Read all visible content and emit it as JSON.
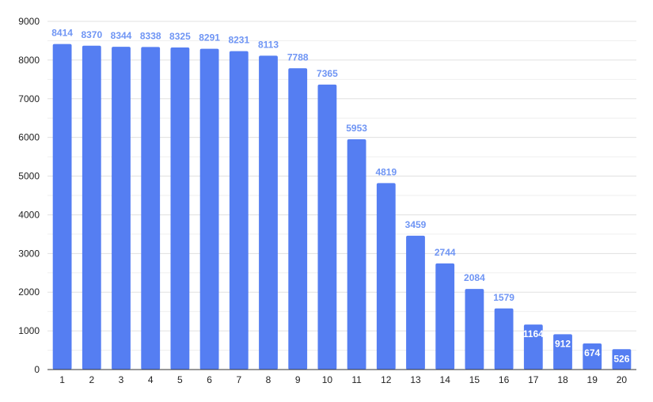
{
  "chart_data": {
    "type": "bar",
    "title": "",
    "xlabel": "",
    "ylabel": "",
    "categories": [
      "1",
      "2",
      "3",
      "4",
      "5",
      "6",
      "7",
      "8",
      "9",
      "10",
      "11",
      "12",
      "13",
      "14",
      "15",
      "16",
      "17",
      "18",
      "19",
      "20"
    ],
    "values": [
      8414,
      8370,
      8344,
      8338,
      8325,
      8291,
      8231,
      8113,
      7788,
      7365,
      5953,
      4819,
      3459,
      2744,
      2084,
      1579,
      1164,
      912,
      674,
      526
    ],
    "ylim": [
      0,
      9000
    ],
    "yticks": [
      0,
      1000,
      2000,
      3000,
      4000,
      5000,
      6000,
      7000,
      8000,
      9000
    ],
    "grid": true,
    "legend": "none",
    "colors": {
      "bar": "#557ef2",
      "label_outside": "#6f95f4",
      "label_inside": "#ffffff",
      "gridline": "#e0e0e0",
      "axis": "#333333"
    }
  }
}
